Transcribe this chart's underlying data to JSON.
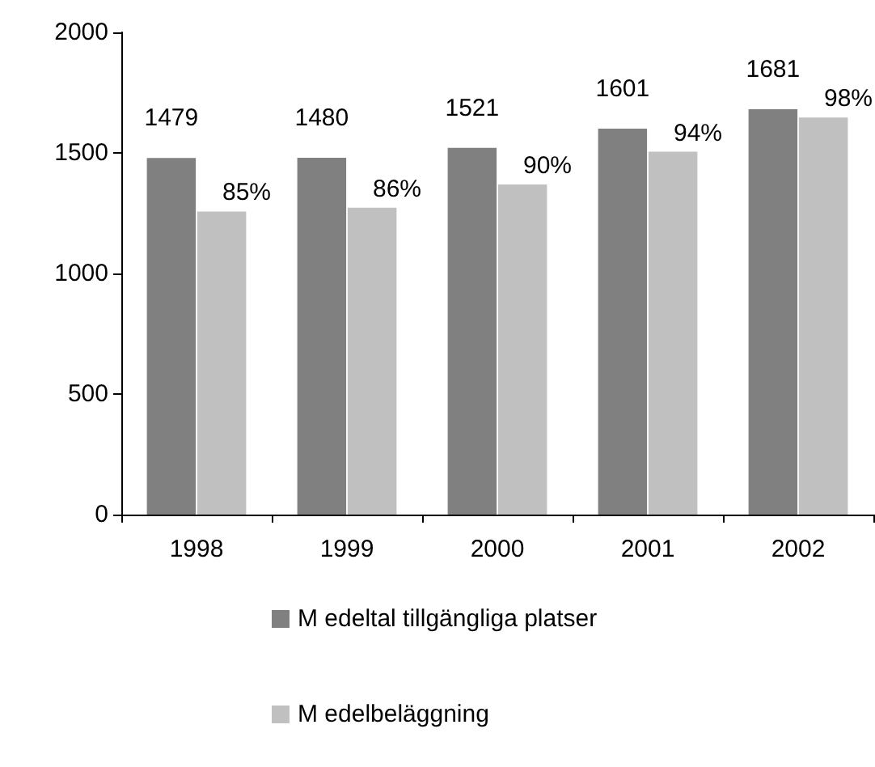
{
  "chart_data": {
    "type": "bar",
    "categories": [
      "1998",
      "1999",
      "2000",
      "2001",
      "2002"
    ],
    "series": [
      {
        "name": "M edeltal tillgängliga platser",
        "color": "#808080",
        "values": [
          1479,
          1480,
          1521,
          1601,
          1681
        ],
        "value_labels": [
          "1479",
          "1480",
          "1521",
          "1601",
          "1681"
        ]
      },
      {
        "name": "M edelbeläggning",
        "color": "#c0c0c0",
        "values": [
          1257,
          1273,
          1369,
          1505,
          1647
        ]
      }
    ],
    "annotations": [
      {
        "text": "85%",
        "x": "1998",
        "y": 1257
      },
      {
        "text": "86%",
        "x": "1999",
        "y": 1273
      },
      {
        "text": "90%",
        "x": "2000",
        "y": 1369
      },
      {
        "text": "94%",
        "x": "2001",
        "y": 1505
      },
      {
        "text": "98%",
        "x": "2002",
        "y": 1647
      }
    ],
    "ylim": [
      0,
      2000
    ],
    "yticks": [
      0,
      500,
      1000,
      1500,
      2000
    ],
    "grid": false,
    "legend": "bottom"
  }
}
